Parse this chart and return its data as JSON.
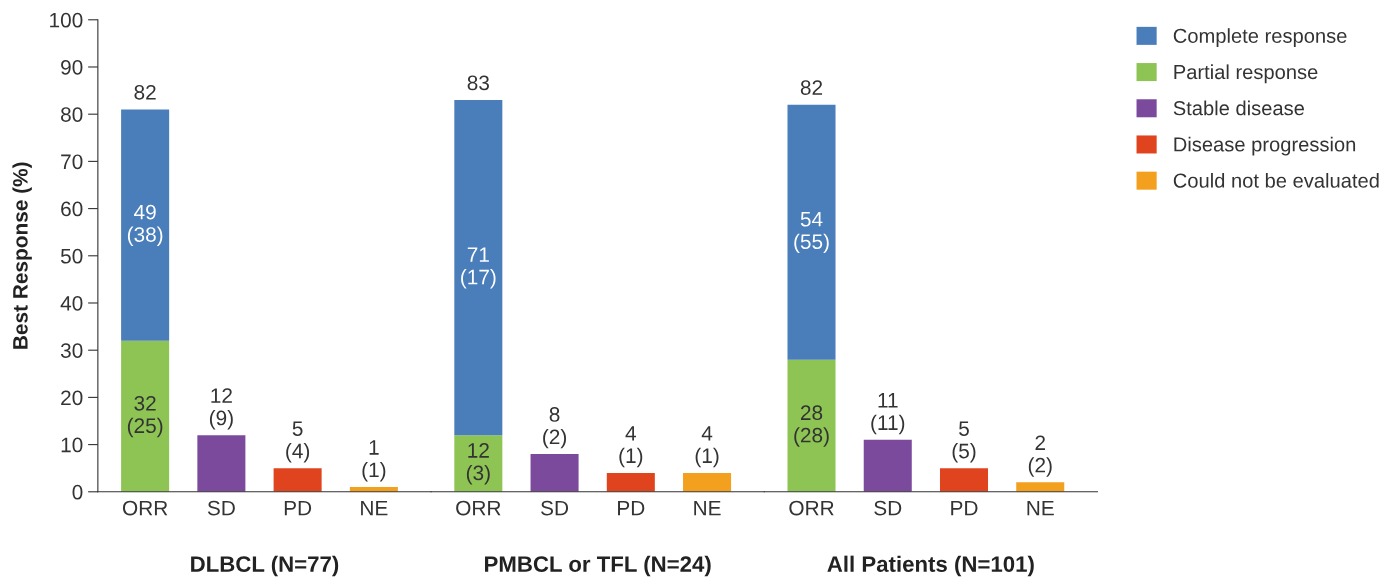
{
  "chart_data": [
    {
      "type": "bar",
      "stacked": true,
      "categories": [
        "ORR",
        "SD",
        "PD",
        "NE"
      ],
      "xlabel": "DLBCL (N=77)",
      "ylabel": "Best Response (%)",
      "ylim": [
        0,
        100
      ],
      "yticks": [
        0,
        10,
        20,
        30,
        40,
        50,
        60,
        70,
        80,
        90,
        100
      ],
      "totals": [
        "82",
        null,
        null,
        null
      ],
      "legend": "right",
      "series": [
        {
          "name": "Partial response",
          "color": "#8dc454",
          "values": [
            32,
            null,
            null,
            null
          ],
          "value_labels": [
            "32\n(25)",
            null,
            null,
            null
          ]
        },
        {
          "name": "Complete response",
          "color": "#4a7ebb",
          "values": [
            49,
            null,
            null,
            null
          ],
          "value_labels": [
            "49\n(38)",
            null,
            null,
            null
          ]
        },
        {
          "name": "Stable disease",
          "color": "#7b4a9c",
          "values": [
            null,
            12,
            null,
            null
          ],
          "value_labels": [
            null,
            "12\n(9)",
            null,
            null
          ]
        },
        {
          "name": "Disease progression",
          "color": "#e0441e",
          "values": [
            null,
            null,
            5,
            null
          ],
          "value_labels": [
            null,
            null,
            "5\n(4)",
            null
          ]
        },
        {
          "name": "Could not be evaluated",
          "color": "#f2a01e",
          "values": [
            null,
            null,
            null,
            1
          ],
          "value_labels": [
            null,
            null,
            null,
            "1\n(1)"
          ]
        }
      ]
    },
    {
      "type": "bar",
      "stacked": true,
      "categories": [
        "ORR",
        "SD",
        "PD",
        "NE"
      ],
      "xlabel": "PMBCL or TFL (N=24)",
      "ylim": [
        0,
        100
      ],
      "yticks": [
        0,
        10,
        20,
        30,
        40,
        50,
        60,
        70,
        80,
        90,
        100
      ],
      "tick_labels": "x",
      "totals": [
        "83",
        null,
        null,
        null
      ],
      "series": [
        {
          "color": "#8dc454",
          "values": [
            12,
            null,
            null,
            null
          ],
          "value_labels": [
            "12\n(3)",
            null,
            null,
            null
          ]
        },
        {
          "color": "#4a7ebb",
          "values": [
            71,
            null,
            null,
            null
          ],
          "value_labels": [
            "71\n(17)",
            null,
            null,
            null
          ]
        },
        {
          "color": "#7b4a9c",
          "values": [
            null,
            8,
            null,
            null
          ],
          "value_labels": [
            null,
            "8\n(2)",
            null,
            null
          ]
        },
        {
          "color": "#e0441e",
          "values": [
            null,
            null,
            4,
            null
          ],
          "value_labels": [
            null,
            null,
            "4\n(1)",
            null
          ]
        },
        {
          "color": "#f2a01e",
          "values": [
            null,
            null,
            null,
            4
          ],
          "value_labels": [
            null,
            null,
            null,
            "4\n(1)"
          ]
        }
      ]
    },
    {
      "type": "bar",
      "stacked": true,
      "categories": [
        "ORR",
        "SD",
        "PD",
        "NE"
      ],
      "xlabel": "All Patients (N=101)",
      "ylim": [
        0,
        100
      ],
      "yticks": [
        0,
        10,
        20,
        30,
        40,
        50,
        60,
        70,
        80,
        90,
        100
      ],
      "tick_labels": "x",
      "totals": [
        "82",
        null,
        null,
        null
      ],
      "series": [
        {
          "color": "#8dc454",
          "values": [
            28,
            null,
            null,
            null
          ],
          "value_labels": [
            "28\n(28)",
            null,
            null,
            null
          ]
        },
        {
          "color": "#4a7ebb",
          "values": [
            54,
            null,
            null,
            null
          ],
          "value_labels": [
            "54\n(55)",
            null,
            null,
            null
          ]
        },
        {
          "color": "#7b4a9c",
          "values": [
            null,
            11,
            null,
            null
          ],
          "value_labels": [
            null,
            "11\n(11)",
            null,
            null
          ]
        },
        {
          "color": "#e0441e",
          "values": [
            null,
            null,
            5,
            null
          ],
          "value_labels": [
            null,
            null,
            "5\n(5)",
            null
          ]
        },
        {
          "color": "#f2a01e",
          "values": [
            null,
            null,
            null,
            2
          ],
          "value_labels": [
            null,
            null,
            null,
            "2\n(2)"
          ]
        }
      ]
    }
  ]
}
